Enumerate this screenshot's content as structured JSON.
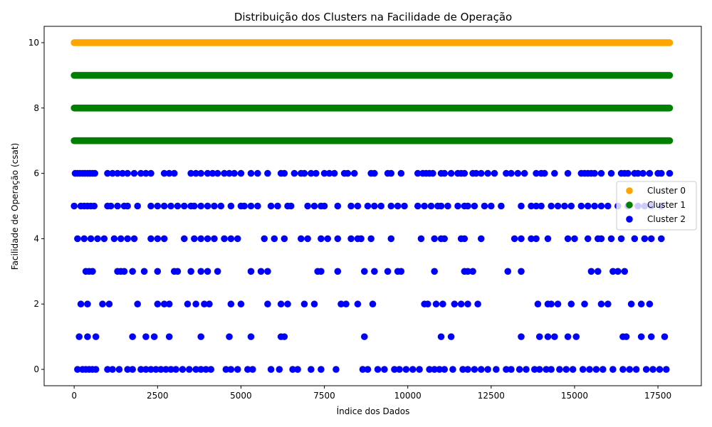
{
  "chart_data": {
    "type": "scatter",
    "title": "Distribuição dos Clusters na Facilidade de Operação",
    "xlabel": "Índice dos Dados",
    "ylabel": "Facilidade de Operação (csat)",
    "xlim": [
      -900,
      18800
    ],
    "ylim": [
      -0.5,
      10.5
    ],
    "x_ticks": [
      0,
      2500,
      5000,
      7500,
      10000,
      12500,
      15000,
      17500
    ],
    "y_ticks": [
      0,
      2,
      4,
      6,
      8,
      10
    ],
    "grid": false,
    "legend_position": "center-right",
    "n_points": 17850,
    "series": [
      {
        "name": "Cluster 0",
        "color": "#FFA500",
        "segments": [
          {
            "y": 10,
            "x": [
              0,
              17850
            ]
          }
        ]
      },
      {
        "name": "Cluster 1",
        "color": "#008000",
        "segments": [
          {
            "y": 9,
            "x": [
              0,
              17850
            ]
          },
          {
            "y": 8,
            "x": [
              0,
              17850
            ]
          },
          {
            "y": 7,
            "x": [
              0,
              17850
            ]
          }
        ]
      },
      {
        "name": "Cluster 2",
        "color": "#0000FF",
        "levels": [
          {
            "y": 6,
            "x": [
              30,
              100,
              170,
              250,
              320,
              400,
              470,
              550,
              620,
              1000,
              1150,
              1300,
              1450,
              1600,
              1800,
              2000,
              2150,
              2300,
              2700,
              2850,
              3000,
              3500,
              3650,
              3800,
              4000,
              4150,
              4300,
              4500,
              4650,
              4800,
              5000,
              5300,
              5500,
              5800,
              6200,
              6300,
              6600,
              6800,
              6900,
              7100,
              7250,
              7500,
              7650,
              7800,
              8100,
              8200,
              8400,
              8900,
              9000,
              9400,
              9500,
              9800,
              10300,
              10450,
              10550,
              10650,
              10750,
              11000,
              11100,
              11300,
              11500,
              11600,
              11700,
              11950,
              12050,
              12200,
              12400,
              12600,
              12950,
              13100,
              13300,
              13500,
              13850,
              14000,
              14100,
              14400,
              14800,
              15200,
              15300,
              15400,
              15500,
              15600,
              15800,
              16100,
              16400,
              16500,
              16600,
              16800,
              16900,
              17050,
              17250,
              17500,
              17600,
              17850
            ]
          },
          {
            "y": 5,
            "x": [
              0,
              200,
              300,
              400,
              500,
              600,
              1000,
              1100,
              1300,
              1500,
              1600,
              1900,
              2300,
              2500,
              2700,
              2900,
              3100,
              3300,
              3500,
              3600,
              3800,
              4000,
              4200,
              4400,
              4700,
              5000,
              5100,
              5300,
              5500,
              5900,
              6100,
              6400,
              6500,
              7000,
              7200,
              7400,
              7500,
              7900,
              8300,
              8500,
              8800,
              9000,
              9200,
              9500,
              9700,
              9900,
              10300,
              10500,
              10700,
              10900,
              11000,
              11200,
              11500,
              11700,
              11800,
              12000,
              12300,
              12500,
              12800,
              13400,
              13700,
              13850,
              14000,
              14300,
              14500,
              14700,
              14900,
              15200,
              15400,
              15600,
              15800,
              16000,
              16300,
              16600,
              16900,
              17100,
              17300,
              17600
            ]
          },
          {
            "y": 4,
            "x": [
              100,
              300,
              500,
              700,
              900,
              1200,
              1400,
              1600,
              1800,
              2300,
              2500,
              2700,
              3300,
              3600,
              3800,
              4000,
              4200,
              4500,
              4700,
              4900,
              5700,
              6000,
              6300,
              6800,
              7000,
              7400,
              7600,
              7900,
              8300,
              8500,
              8600,
              8900,
              9500,
              10400,
              10800,
              11000,
              11100,
              11600,
              11700,
              12200,
              13200,
              13400,
              13700,
              13850,
              14200,
              14800,
              15000,
              15400,
              15700,
              15800,
              16100,
              16400,
              16800,
              17100,
              17300,
              17600
            ]
          },
          {
            "y": 3,
            "x": [
              350,
              450,
              550,
              1300,
              1400,
              1500,
              1750,
              2100,
              2500,
              3000,
              3100,
              3500,
              3800,
              4000,
              4300,
              5300,
              5600,
              5800,
              7300,
              7400,
              7900,
              8700,
              9000,
              9400,
              9700,
              9800,
              10800,
              11700,
              11800,
              11950,
              13000,
              13400,
              15500,
              15700,
              16150,
              16300,
              16500
            ]
          },
          {
            "y": 2,
            "x": [
              200,
              400,
              850,
              1050,
              1900,
              2500,
              2700,
              2850,
              3400,
              3650,
              3900,
              4050,
              4700,
              5000,
              5800,
              6200,
              6400,
              6900,
              7200,
              8000,
              8150,
              8500,
              8950,
              10500,
              10600,
              10850,
              11050,
              11400,
              11600,
              11800,
              12100,
              13900,
              14200,
              14300,
              14500,
              14900,
              15300,
              15800,
              16000,
              16700,
              17000,
              17250
            ]
          },
          {
            "y": 1,
            "x": [
              150,
              400,
              650,
              1750,
              2150,
              2400,
              2850,
              3800,
              4650,
              5300,
              6200,
              6300,
              8700,
              11000,
              11300,
              13400,
              13950,
              14200,
              14400,
              14800,
              15050,
              16450,
              16550,
              17000,
              17300,
              17700
            ]
          },
          {
            "y": 0,
            "x": [
              100,
              250,
              350,
              450,
              550,
              650,
              1000,
              1150,
              1350,
              1600,
              1750,
              2000,
              2150,
              2300,
              2450,
              2600,
              2750,
              2900,
              3050,
              3250,
              3450,
              3650,
              3800,
              3950,
              4100,
              4550,
              4700,
              4900,
              5200,
              5350,
              5900,
              6150,
              6550,
              6700,
              7100,
              7400,
              7850,
              8650,
              8800,
              9100,
              9300,
              9600,
              9750,
              9950,
              10150,
              10350,
              10650,
              10800,
              10950,
              11100,
              11350,
              11650,
              11800,
              12000,
              12200,
              12400,
              12650,
              12950,
              13100,
              13350,
              13550,
              13800,
              13950,
              14150,
              14300,
              14550,
              14750,
              14950,
              15250,
              15450,
              15650,
              15850,
              16150,
              16450,
              16650,
              16850,
              17150,
              17350,
              17550,
              17750
            ]
          }
        ]
      }
    ]
  }
}
